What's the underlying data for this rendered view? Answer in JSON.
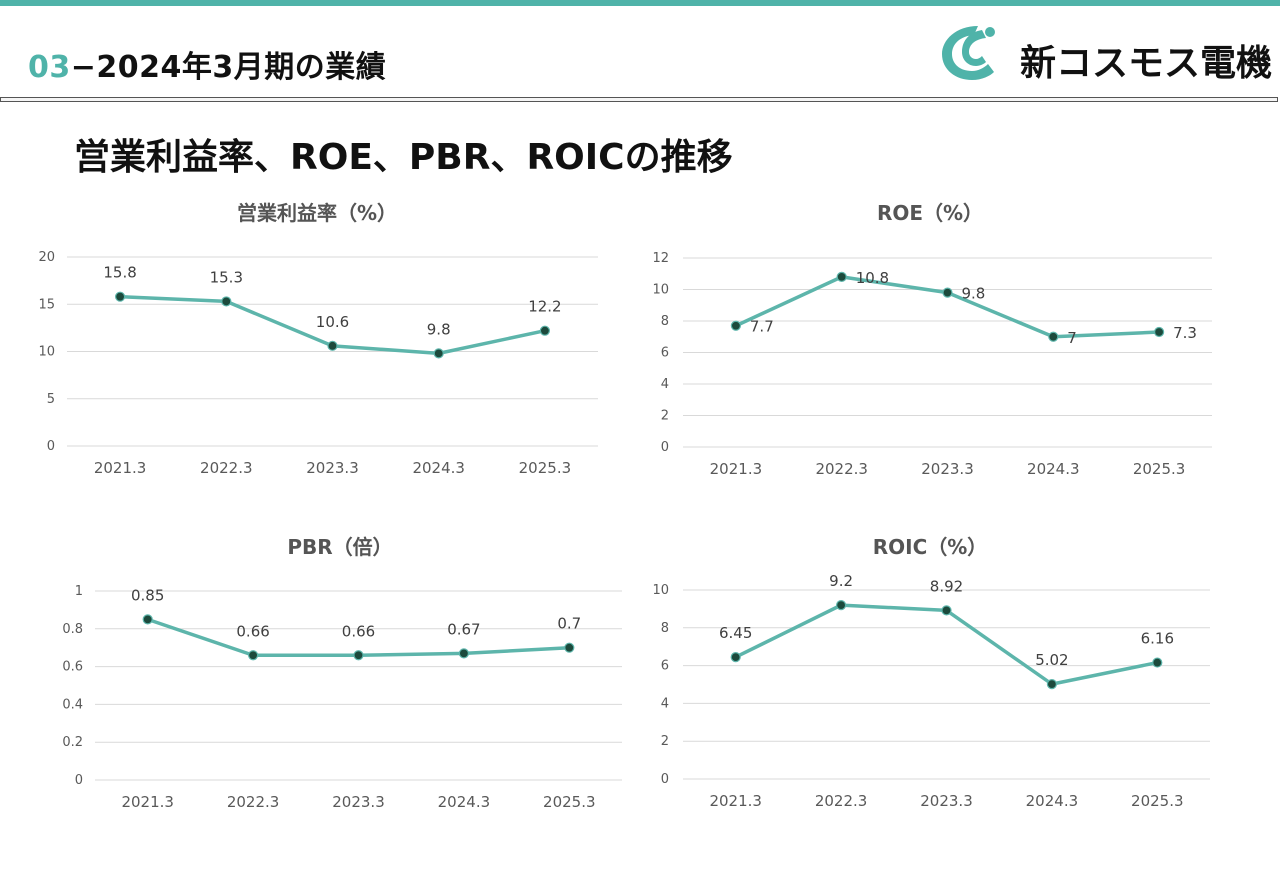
{
  "header": {
    "section_number": "03",
    "section_dash": "−",
    "section_title": "2024年3月期の業績",
    "company_name": "新コスモス電機",
    "accent_color": "#4fb3a9"
  },
  "page_title": "営業利益率、ROE、PBR、ROICの推移",
  "chart_data": [
    {
      "type": "line",
      "title": "営業利益率（%）",
      "categories": [
        "2021.3",
        "2022.3",
        "2023.3",
        "2024.3",
        "2025.3"
      ],
      "values": [
        15.8,
        15.3,
        10.6,
        9.8,
        12.2
      ],
      "data_labels": [
        "15.8",
        "15.3",
        "10.6",
        "9.8",
        "12.2"
      ],
      "label_position": "above",
      "ylim": [
        0,
        20
      ],
      "yticks": [
        "0",
        "5",
        "10",
        "15",
        "20"
      ],
      "grid": true,
      "line_color": "#5db5ab",
      "marker_color": "#1c4a3c"
    },
    {
      "type": "line",
      "title": "ROE（%）",
      "categories": [
        "2021.3",
        "2022.3",
        "2023.3",
        "2024.3",
        "2025.3"
      ],
      "values": [
        7.7,
        10.8,
        9.8,
        7,
        7.3
      ],
      "data_labels": [
        "7.7",
        "10.8",
        "9.8",
        "7",
        "7.3"
      ],
      "label_position": "right",
      "ylim": [
        0,
        12
      ],
      "yticks": [
        "0",
        "2",
        "4",
        "6",
        "8",
        "10",
        "12"
      ],
      "grid": true,
      "line_color": "#5db5ab",
      "marker_color": "#1c4a3c"
    },
    {
      "type": "line",
      "title": "PBR（倍）",
      "categories": [
        "2021.3",
        "2022.3",
        "2023.3",
        "2024.3",
        "2025.3"
      ],
      "values": [
        0.85,
        0.66,
        0.66,
        0.67,
        0.7
      ],
      "data_labels": [
        "0.85",
        "0.66",
        "0.66",
        "0.67",
        "0.7"
      ],
      "label_position": "above",
      "ylim": [
        0,
        1
      ],
      "yticks": [
        "0",
        "0.2",
        "0.4",
        "0.6",
        "0.8",
        "1"
      ],
      "grid": true,
      "line_color": "#5db5ab",
      "marker_color": "#1c4a3c"
    },
    {
      "type": "line",
      "title": "ROIC（%）",
      "categories": [
        "2021.3",
        "2022.3",
        "2023.3",
        "2024.3",
        "2025.3"
      ],
      "values": [
        6.45,
        9.2,
        8.92,
        5.02,
        6.16
      ],
      "data_labels": [
        "6.45",
        "9.2",
        "8.92",
        "5.02",
        "6.16"
      ],
      "label_position": "above",
      "ylim": [
        0,
        10
      ],
      "yticks": [
        "0",
        "2",
        "4",
        "6",
        "8",
        "10"
      ],
      "grid": true,
      "line_color": "#5db5ab",
      "marker_color": "#1c4a3c"
    }
  ]
}
